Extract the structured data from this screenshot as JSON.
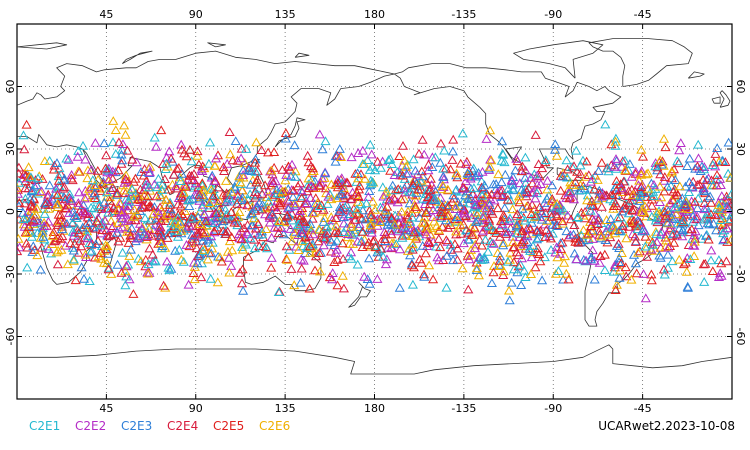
{
  "map": {
    "projection": "equirectangular",
    "center_longitude": 180,
    "lon_range": [
      0,
      360
    ],
    "lat_range": [
      -90,
      90
    ],
    "grid": "dotted",
    "x_tick_labels": [
      "45",
      "90",
      "135",
      "180",
      "-135",
      "-90",
      "-45"
    ],
    "x_tick_lons": [
      45,
      90,
      135,
      180,
      225,
      270,
      315
    ],
    "y_tick_labels": [
      "60",
      "30",
      "0",
      "-30",
      "-60"
    ],
    "y_tick_lats": [
      60,
      30,
      0,
      -30,
      -60
    ],
    "coverage_lat_range": [
      -45,
      45
    ]
  },
  "legend": {
    "items": [
      {
        "label": "C2E1",
        "color": "#25b9d0"
      },
      {
        "label": "C2E2",
        "color": "#b52dc7"
      },
      {
        "label": "C2E3",
        "color": "#2f7fd8"
      },
      {
        "label": "C2E4",
        "color": "#d81c3c"
      },
      {
        "label": "C2E5",
        "color": "#e0201e"
      },
      {
        "label": "C2E6",
        "color": "#f0b000"
      }
    ]
  },
  "stamp": "UCARwet2.2023-10-08",
  "colors": {
    "frame": "#000000",
    "coast": "#333333",
    "grid": "#666666"
  },
  "marker_icon": "triangle-outline"
}
